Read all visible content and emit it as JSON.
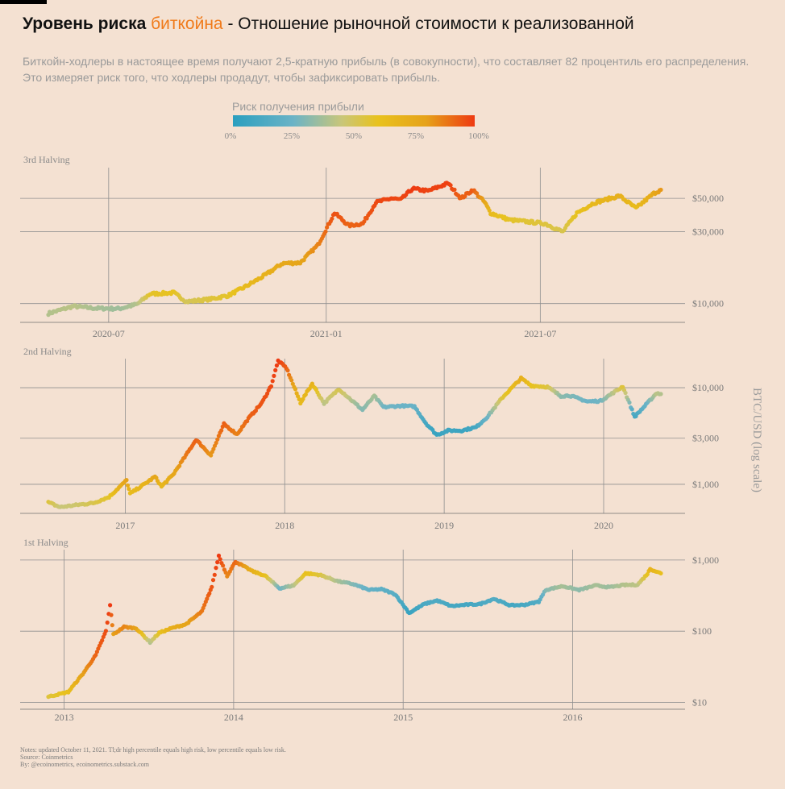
{
  "header": {
    "title_bold": "Уровень риска ",
    "title_highlight": "биткойна",
    "title_rest": " - Отношение рыночной стоимости к реализованной",
    "subtitle_line1": "Биткойн-ходлеры в настоящее время получают 2,5-кратную прибыль (в совокупности), что составляет 82 процентиль его распределения.",
    "subtitle_line2": "Это измеряет риск того, что ходлеры продадут, чтобы зафиксировать прибыль."
  },
  "colors": {
    "background": "#f4e1d2",
    "highlight": "#f07a1a",
    "scale": [
      "#2b9fbf",
      "#6bb3c6",
      "#c9c679",
      "#e8c21e",
      "#e6a21a",
      "#ee3a12"
    ]
  },
  "legend": {
    "title": "Риск получения прибыли",
    "ticks": [
      "0%",
      "25%",
      "50%",
      "75%",
      "100%"
    ]
  },
  "axis": {
    "ylabel": "BTC/USD (log scale)"
  },
  "chart_data": [
    {
      "type": "scatter",
      "panel": "3rd Halving",
      "scale": "log",
      "ylim": [
        7500,
        80000
      ],
      "yticks": [
        10000,
        30000,
        50000
      ],
      "ytick_labels": [
        "$10,000",
        "$30,000",
        "$50,000"
      ],
      "xticks": [
        "2020-07",
        "2021-01",
        "2021-07"
      ],
      "x_start": "2020-05-11",
      "x_end": "2021-10-11",
      "points": [
        [
          "2020-05-11",
          8600,
          0.4
        ],
        [
          "2020-06-01",
          9600,
          0.42
        ],
        [
          "2020-06-20",
          9300,
          0.38
        ],
        [
          "2020-07-10",
          9250,
          0.36
        ],
        [
          "2020-07-25",
          9900,
          0.4
        ],
        [
          "2020-08-05",
          11600,
          0.58
        ],
        [
          "2020-08-25",
          11800,
          0.6
        ],
        [
          "2020-09-05",
          10300,
          0.5
        ],
        [
          "2020-09-25",
          10700,
          0.55
        ],
        [
          "2020-10-10",
          11300,
          0.58
        ],
        [
          "2020-10-25",
          13000,
          0.65
        ],
        [
          "2020-11-10",
          15400,
          0.7
        ],
        [
          "2020-11-25",
          18500,
          0.76
        ],
        [
          "2020-12-10",
          18700,
          0.78
        ],
        [
          "2020-12-25",
          24500,
          0.86
        ],
        [
          "2021-01-08",
          40000,
          0.96
        ],
        [
          "2021-01-20",
          33000,
          0.92
        ],
        [
          "2021-02-01",
          34000,
          0.93
        ],
        [
          "2021-02-12",
          47000,
          0.97
        ],
        [
          "2021-02-25",
          50000,
          0.98
        ],
        [
          "2021-03-05",
          49000,
          0.97
        ],
        [
          "2021-03-15",
          58000,
          1.0
        ],
        [
          "2021-03-28",
          56000,
          0.98
        ],
        [
          "2021-04-14",
          63000,
          0.99
        ],
        [
          "2021-04-25",
          50000,
          0.92
        ],
        [
          "2021-05-05",
          57000,
          0.94
        ],
        [
          "2021-05-15",
          47000,
          0.78
        ],
        [
          "2021-05-20",
          40000,
          0.65
        ],
        [
          "2021-06-05",
          36000,
          0.58
        ],
        [
          "2021-06-20",
          35000,
          0.56
        ],
        [
          "2021-07-05",
          34000,
          0.55
        ],
        [
          "2021-07-20",
          30000,
          0.52
        ],
        [
          "2021-08-01",
          40000,
          0.6
        ],
        [
          "2021-08-15",
          46500,
          0.66
        ],
        [
          "2021-09-06",
          52000,
          0.72
        ],
        [
          "2021-09-20",
          43000,
          0.64
        ],
        [
          "2021-10-05",
          54000,
          0.76
        ],
        [
          "2021-10-11",
          57000,
          0.82
        ]
      ]
    },
    {
      "type": "scatter",
      "panel": "2nd Halving",
      "scale": "log",
      "ylim": [
        500,
        20000
      ],
      "yticks": [
        1000,
        3000,
        10000
      ],
      "ytick_labels": [
        "$1,000",
        "$3,000",
        "$10,000"
      ],
      "xticks": [
        "2017",
        "2018",
        "2019",
        "2020"
      ],
      "x_start": "2016-07-09",
      "x_end": "2020-05-11",
      "points": [
        [
          "2016-07-09",
          650,
          0.55
        ],
        [
          "2016-08-05",
          580,
          0.45
        ],
        [
          "2016-09-10",
          610,
          0.47
        ],
        [
          "2016-10-20",
          640,
          0.52
        ],
        [
          "2016-11-25",
          740,
          0.58
        ],
        [
          "2017-01-04",
          1100,
          0.8
        ],
        [
          "2017-01-12",
          800,
          0.64
        ],
        [
          "2017-02-20",
          1050,
          0.7
        ],
        [
          "2017-03-10",
          1200,
          0.78
        ],
        [
          "2017-03-25",
          950,
          0.66
        ],
        [
          "2017-04-20",
          1250,
          0.76
        ],
        [
          "2017-05-20",
          2000,
          0.88
        ],
        [
          "2017-06-12",
          2900,
          0.93
        ],
        [
          "2017-07-16",
          2000,
          0.82
        ],
        [
          "2017-08-15",
          4200,
          0.93
        ],
        [
          "2017-09-14",
          3300,
          0.86
        ],
        [
          "2017-10-10",
          4800,
          0.92
        ],
        [
          "2017-11-10",
          7000,
          0.95
        ],
        [
          "2017-12-01",
          10500,
          0.97
        ],
        [
          "2017-12-17",
          19000,
          1.0
        ],
        [
          "2018-01-05",
          16000,
          0.93
        ],
        [
          "2018-02-06",
          7000,
          0.65
        ],
        [
          "2018-03-05",
          11000,
          0.7
        ],
        [
          "2018-04-01",
          6900,
          0.42
        ],
        [
          "2018-05-05",
          9700,
          0.52
        ],
        [
          "2018-06-28",
          5900,
          0.3
        ],
        [
          "2018-07-25",
          8200,
          0.38
        ],
        [
          "2018-08-15",
          6300,
          0.26
        ],
        [
          "2018-09-25",
          6500,
          0.25
        ],
        [
          "2018-10-25",
          6400,
          0.24
        ],
        [
          "2018-11-20",
          4300,
          0.1
        ],
        [
          "2018-12-15",
          3250,
          0.05
        ],
        [
          "2019-01-10",
          3600,
          0.08
        ],
        [
          "2019-02-10",
          3600,
          0.06
        ],
        [
          "2019-03-15",
          3900,
          0.1
        ],
        [
          "2019-04-10",
          5000,
          0.25
        ],
        [
          "2019-05-15",
          8000,
          0.55
        ],
        [
          "2019-06-26",
          12500,
          0.72
        ],
        [
          "2019-07-20",
          10500,
          0.6
        ],
        [
          "2019-08-25",
          10200,
          0.55
        ],
        [
          "2019-09-25",
          8200,
          0.32
        ],
        [
          "2019-10-15",
          8300,
          0.3
        ],
        [
          "2019-11-25",
          7200,
          0.25
        ],
        [
          "2019-12-25",
          7300,
          0.26
        ],
        [
          "2020-01-20",
          8700,
          0.4
        ],
        [
          "2020-02-14",
          10300,
          0.55
        ],
        [
          "2020-03-12",
          5000,
          0.1
        ],
        [
          "2020-04-10",
          6900,
          0.25
        ],
        [
          "2020-05-01",
          8800,
          0.42
        ],
        [
          "2020-05-11",
          8600,
          0.4
        ]
      ]
    },
    {
      "type": "scatter",
      "panel": "1st Halving",
      "scale": "log",
      "ylim": [
        8,
        1400
      ],
      "yticks": [
        10,
        100,
        1000
      ],
      "ytick_labels": [
        "$10",
        "$100",
        "$1,000"
      ],
      "xticks": [
        "2013",
        "2014",
        "2015",
        "2016"
      ],
      "x_start": "2012-11-28",
      "x_end": "2016-07-09",
      "points": [
        [
          "2012-11-28",
          12,
          0.55
        ],
        [
          "2013-01-10",
          14,
          0.62
        ],
        [
          "2013-02-10",
          25,
          0.8
        ],
        [
          "2013-03-10",
          46,
          0.92
        ],
        [
          "2013-04-01",
          100,
          0.96
        ],
        [
          "2013-04-10",
          230,
          1.0
        ],
        [
          "2013-04-17",
          90,
          0.8
        ],
        [
          "2013-05-10",
          115,
          0.86
        ],
        [
          "2013-06-05",
          110,
          0.8
        ],
        [
          "2013-07-05",
          70,
          0.4
        ],
        [
          "2013-07-25",
          95,
          0.6
        ],
        [
          "2013-08-20",
          110,
          0.72
        ],
        [
          "2013-09-20",
          125,
          0.78
        ],
        [
          "2013-10-25",
          190,
          0.88
        ],
        [
          "2013-11-15",
          420,
          0.95
        ],
        [
          "2013-11-30",
          1150,
          1.0
        ],
        [
          "2013-12-18",
          600,
          0.85
        ],
        [
          "2014-01-05",
          950,
          0.92
        ],
        [
          "2014-02-10",
          700,
          0.72
        ],
        [
          "2014-03-10",
          600,
          0.62
        ],
        [
          "2014-04-10",
          400,
          0.25
        ],
        [
          "2014-05-10",
          440,
          0.4
        ],
        [
          "2014-06-05",
          650,
          0.62
        ],
        [
          "2014-07-05",
          620,
          0.55
        ],
        [
          "2014-08-15",
          500,
          0.38
        ],
        [
          "2014-09-15",
          460,
          0.3
        ],
        [
          "2014-10-20",
          380,
          0.22
        ],
        [
          "2014-11-15",
          390,
          0.2
        ],
        [
          "2014-12-15",
          330,
          0.18
        ],
        [
          "2015-01-14",
          180,
          0.05
        ],
        [
          "2015-02-15",
          240,
          0.12
        ],
        [
          "2015-03-15",
          270,
          0.14
        ],
        [
          "2015-04-15",
          225,
          0.1
        ],
        [
          "2015-05-15",
          235,
          0.1
        ],
        [
          "2015-06-15",
          240,
          0.12
        ],
        [
          "2015-07-15",
          285,
          0.16
        ],
        [
          "2015-08-20",
          230,
          0.1
        ],
        [
          "2015-09-20",
          235,
          0.11
        ],
        [
          "2015-10-20",
          260,
          0.15
        ],
        [
          "2015-11-04",
          380,
          0.3
        ],
        [
          "2015-12-10",
          430,
          0.38
        ],
        [
          "2016-01-15",
          380,
          0.32
        ],
        [
          "2016-02-20",
          440,
          0.38
        ],
        [
          "2016-03-20",
          415,
          0.35
        ],
        [
          "2016-04-20",
          445,
          0.4
        ],
        [
          "2016-05-20",
          450,
          0.42
        ],
        [
          "2016-06-10",
          640,
          0.6
        ],
        [
          "2016-06-16",
          750,
          0.7
        ],
        [
          "2016-07-09",
          650,
          0.62
        ]
      ]
    }
  ],
  "panels": {
    "p3_label": "3rd Halving",
    "p2_label": "2nd Halving",
    "p1_label": "1st Halving"
  },
  "footer": {
    "notes": "Notes: updated October 11, 2021. Tl;dr high percentile equals high risk, low percentile equals low risk.",
    "source": "Source: Coinmetrics",
    "by": "By: @ecoinometrics, ecoinometrics.substack.com"
  }
}
